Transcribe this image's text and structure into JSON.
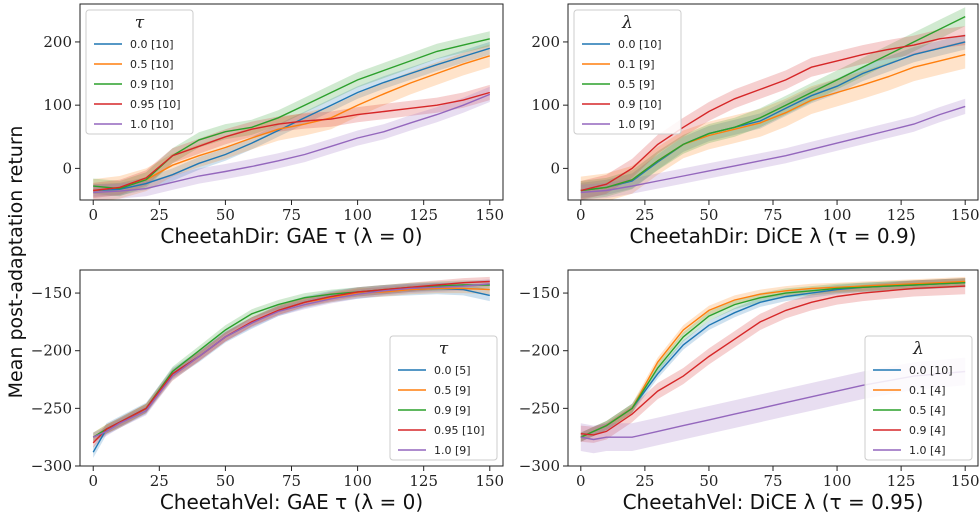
{
  "ylabel": "Mean post-adaptation return",
  "chart_data": [
    {
      "type": "line",
      "xlabel": "CheetahDir: GAE τ (λ = 0)",
      "xlim": [
        -5,
        155
      ],
      "ylim": [
        -50,
        260
      ],
      "xticks": [
        0,
        25,
        50,
        75,
        100,
        125,
        150
      ],
      "yticks": [
        0,
        100,
        200
      ],
      "legend_title": "τ",
      "legend_position": "top-left",
      "series": [
        {
          "name": "0.0 [10]",
          "color": "#1f77b4",
          "band": 10,
          "x": [
            0,
            10,
            20,
            30,
            40,
            50,
            60,
            70,
            80,
            90,
            100,
            110,
            120,
            130,
            140,
            150
          ],
          "values": [
            -35,
            -33,
            -24,
            -10,
            8,
            22,
            40,
            60,
            80,
            100,
            120,
            136,
            150,
            164,
            177,
            190
          ]
        },
        {
          "name": "0.5 [10]",
          "color": "#ff7f0e",
          "band": 18,
          "x": [
            0,
            10,
            20,
            30,
            40,
            50,
            60,
            70,
            80,
            90,
            100,
            110,
            120,
            130,
            140,
            150
          ],
          "values": [
            -35,
            -30,
            -18,
            5,
            20,
            33,
            48,
            62,
            70,
            80,
            100,
            118,
            135,
            150,
            165,
            178
          ]
        },
        {
          "name": "0.9 [10]",
          "color": "#2ca02c",
          "band": 12,
          "x": [
            0,
            10,
            20,
            30,
            40,
            50,
            60,
            70,
            80,
            90,
            100,
            110,
            120,
            130,
            140,
            150
          ],
          "values": [
            -28,
            -32,
            -18,
            20,
            45,
            58,
            65,
            80,
            100,
            120,
            140,
            155,
            170,
            185,
            195,
            205
          ]
        },
        {
          "name": "0.95 [10]",
          "color": "#d62728",
          "band": 12,
          "x": [
            0,
            10,
            20,
            30,
            40,
            50,
            60,
            70,
            80,
            90,
            100,
            110,
            120,
            130,
            140,
            150
          ],
          "values": [
            -35,
            -30,
            -15,
            20,
            35,
            50,
            62,
            70,
            75,
            78,
            85,
            90,
            95,
            100,
            108,
            120
          ]
        },
        {
          "name": "1.0 [10]",
          "color": "#9467bd",
          "band": 12,
          "x": [
            0,
            10,
            20,
            30,
            40,
            50,
            60,
            70,
            80,
            90,
            100,
            110,
            120,
            130,
            140,
            150
          ],
          "values": [
            -38,
            -36,
            -32,
            -22,
            -12,
            -5,
            3,
            12,
            22,
            35,
            48,
            58,
            72,
            85,
            100,
            117
          ]
        }
      ]
    },
    {
      "type": "line",
      "xlabel": "CheetahDir: DiCE λ (τ = 0.9)",
      "xlim": [
        -5,
        155
      ],
      "ylim": [
        -50,
        260
      ],
      "xticks": [
        0,
        25,
        50,
        75,
        100,
        125,
        150
      ],
      "yticks": [
        0,
        100,
        200
      ],
      "legend_title": "λ",
      "legend_position": "top-left",
      "series": [
        {
          "name": "0.0 [10]",
          "color": "#1f77b4",
          "band": 12,
          "x": [
            0,
            10,
            20,
            30,
            40,
            50,
            60,
            70,
            80,
            90,
            100,
            110,
            120,
            130,
            140,
            150
          ],
          "values": [
            -35,
            -30,
            -20,
            10,
            38,
            55,
            65,
            75,
            95,
            115,
            130,
            150,
            165,
            180,
            190,
            200
          ]
        },
        {
          "name": "0.1 [9]",
          "color": "#ff7f0e",
          "band": 22,
          "x": [
            0,
            10,
            20,
            30,
            40,
            50,
            60,
            70,
            80,
            90,
            100,
            110,
            120,
            130,
            140,
            150
          ],
          "values": [
            -35,
            -30,
            -18,
            12,
            38,
            52,
            62,
            72,
            88,
            108,
            120,
            132,
            145,
            160,
            170,
            180
          ]
        },
        {
          "name": "0.5 [9]",
          "color": "#2ca02c",
          "band": 15,
          "x": [
            0,
            10,
            20,
            30,
            40,
            50,
            60,
            70,
            80,
            90,
            100,
            110,
            120,
            130,
            140,
            150
          ],
          "values": [
            -35,
            -30,
            -18,
            12,
            38,
            55,
            65,
            80,
            100,
            120,
            140,
            160,
            180,
            200,
            220,
            240
          ]
        },
        {
          "name": "0.9 [10]",
          "color": "#d62728",
          "band": 15,
          "x": [
            0,
            10,
            20,
            30,
            40,
            50,
            60,
            70,
            80,
            90,
            100,
            110,
            120,
            130,
            140,
            150
          ],
          "values": [
            -35,
            -25,
            0,
            38,
            65,
            90,
            110,
            125,
            140,
            160,
            170,
            180,
            188,
            195,
            205,
            210
          ]
        },
        {
          "name": "1.0 [9]",
          "color": "#9467bd",
          "band": 12,
          "x": [
            0,
            10,
            20,
            30,
            40,
            50,
            60,
            70,
            80,
            90,
            100,
            110,
            120,
            130,
            140,
            150
          ],
          "values": [
            -38,
            -35,
            -28,
            -20,
            -12,
            -4,
            4,
            12,
            20,
            30,
            40,
            50,
            60,
            70,
            85,
            98
          ]
        }
      ]
    },
    {
      "type": "line",
      "xlabel": "CheetahVel: GAE τ (λ = 0)",
      "xlim": [
        -5,
        155
      ],
      "ylim": [
        -300,
        -130
      ],
      "xticks": [
        0,
        25,
        50,
        75,
        100,
        125,
        150
      ],
      "yticks": [
        -300,
        -250,
        -200,
        -150
      ],
      "legend_title": "τ",
      "legend_position": "bottom-right",
      "series": [
        {
          "name": "0.0 [5]",
          "color": "#1f77b4",
          "band": 5,
          "x": [
            0,
            5,
            10,
            20,
            30,
            40,
            50,
            60,
            70,
            80,
            90,
            100,
            110,
            120,
            130,
            140,
            150
          ],
          "values": [
            -288,
            -268,
            -262,
            -250,
            -220,
            -205,
            -188,
            -176,
            -165,
            -158,
            -153,
            -150,
            -148,
            -147,
            -146,
            -147,
            -152
          ]
        },
        {
          "name": "0.5 [9]",
          "color": "#ff7f0e",
          "band": 4,
          "x": [
            0,
            5,
            10,
            20,
            30,
            40,
            50,
            60,
            70,
            80,
            90,
            100,
            110,
            120,
            130,
            140,
            150
          ],
          "values": [
            -275,
            -268,
            -263,
            -250,
            -222,
            -205,
            -188,
            -175,
            -165,
            -158,
            -154,
            -150,
            -149,
            -147,
            -146,
            -146,
            -147
          ]
        },
        {
          "name": "0.9 [9]",
          "color": "#2ca02c",
          "band": 4,
          "x": [
            0,
            5,
            10,
            20,
            30,
            40,
            50,
            60,
            70,
            80,
            90,
            100,
            110,
            120,
            130,
            140,
            150
          ],
          "values": [
            -275,
            -268,
            -262,
            -250,
            -218,
            -200,
            -182,
            -168,
            -160,
            -154,
            -151,
            -149,
            -147,
            -145,
            -144,
            -143,
            -143
          ]
        },
        {
          "name": "0.95 [10]",
          "color": "#d62728",
          "band": 4,
          "x": [
            0,
            5,
            10,
            20,
            30,
            40,
            50,
            60,
            70,
            80,
            90,
            100,
            110,
            120,
            130,
            140,
            150
          ],
          "values": [
            -280,
            -268,
            -262,
            -250,
            -220,
            -205,
            -188,
            -175,
            -165,
            -158,
            -153,
            -149,
            -147,
            -145,
            -143,
            -141,
            -140
          ]
        },
        {
          "name": "1.0 [9]",
          "color": "#9467bd",
          "band": 4,
          "x": [
            0,
            5,
            10,
            20,
            30,
            40,
            50,
            60,
            70,
            80,
            90,
            100,
            110,
            120,
            130,
            140,
            150
          ],
          "values": [
            -275,
            -270,
            -263,
            -252,
            -222,
            -205,
            -188,
            -176,
            -166,
            -160,
            -155,
            -151,
            -148,
            -146,
            -145,
            -144,
            -142
          ]
        }
      ]
    },
    {
      "type": "line",
      "xlabel": "CheetahVel: DiCE λ (τ = 0.95)",
      "xlim": [
        -5,
        155
      ],
      "ylim": [
        -300,
        -130
      ],
      "xticks": [
        0,
        25,
        50,
        75,
        100,
        125,
        150
      ],
      "yticks": [
        -300,
        -250,
        -200,
        -150
      ],
      "legend_title": "λ",
      "legend_position": "bottom-right",
      "series": [
        {
          "name": "0.0 [10]",
          "color": "#1f77b4",
          "band": 4,
          "x": [
            0,
            5,
            10,
            20,
            30,
            40,
            50,
            60,
            70,
            80,
            90,
            100,
            110,
            120,
            130,
            140,
            150
          ],
          "values": [
            -275,
            -270,
            -265,
            -250,
            -220,
            -195,
            -178,
            -167,
            -158,
            -153,
            -150,
            -147,
            -145,
            -144,
            -143,
            -142,
            -141
          ]
        },
        {
          "name": "0.1 [4]",
          "color": "#ff7f0e",
          "band": 4,
          "x": [
            0,
            5,
            10,
            20,
            30,
            40,
            50,
            60,
            70,
            80,
            90,
            100,
            110,
            120,
            130,
            140,
            150
          ],
          "values": [
            -275,
            -270,
            -265,
            -250,
            -210,
            -182,
            -165,
            -156,
            -151,
            -148,
            -146,
            -145,
            -144,
            -143,
            -142,
            -141,
            -140
          ]
        },
        {
          "name": "0.5 [4]",
          "color": "#2ca02c",
          "band": 4,
          "x": [
            0,
            5,
            10,
            20,
            30,
            40,
            50,
            60,
            70,
            80,
            90,
            100,
            110,
            120,
            130,
            140,
            150
          ],
          "values": [
            -275,
            -270,
            -265,
            -250,
            -215,
            -188,
            -170,
            -160,
            -154,
            -150,
            -148,
            -146,
            -145,
            -144,
            -143,
            -142,
            -141
          ]
        },
        {
          "name": "0.9 [4]",
          "color": "#d62728",
          "band": 7,
          "x": [
            0,
            5,
            10,
            20,
            30,
            40,
            50,
            60,
            70,
            80,
            90,
            100,
            110,
            120,
            130,
            140,
            150
          ],
          "values": [
            -272,
            -273,
            -270,
            -255,
            -235,
            -222,
            -205,
            -190,
            -175,
            -165,
            -158,
            -153,
            -150,
            -148,
            -146,
            -145,
            -144
          ]
        },
        {
          "name": "1.0 [4]",
          "color": "#9467bd",
          "band": 12,
          "x": [
            0,
            5,
            10,
            20,
            30,
            40,
            50,
            60,
            70,
            80,
            90,
            100,
            110,
            120,
            130,
            140,
            150
          ],
          "values": [
            -275,
            -277,
            -275,
            -275,
            -270,
            -265,
            -260,
            -255,
            -250,
            -245,
            -240,
            -235,
            -230,
            -226,
            -222,
            -220,
            -218
          ]
        }
      ]
    }
  ]
}
